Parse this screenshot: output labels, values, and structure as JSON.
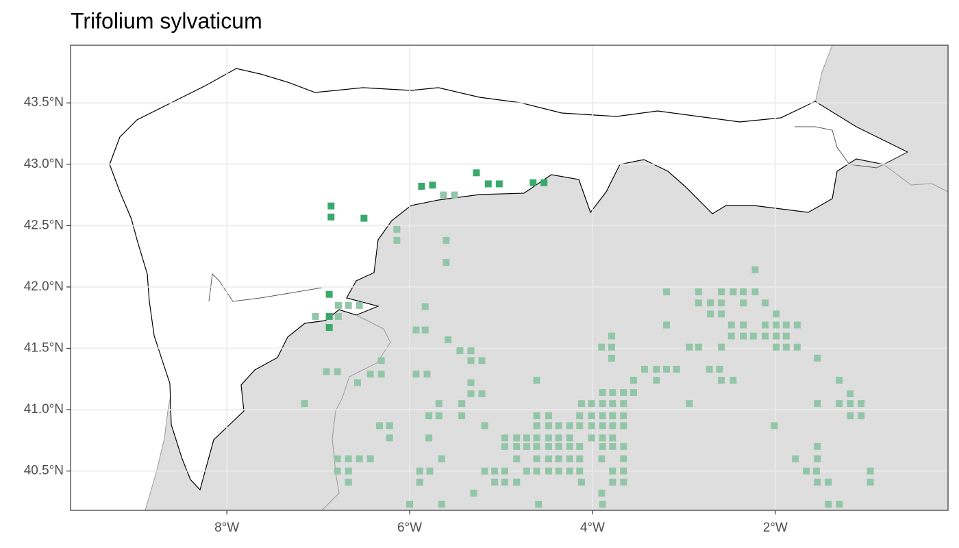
{
  "chart_data": {
    "type": "scatter",
    "title": "Trifolium sylvaticum",
    "xlim": [
      -9.71,
      -0.11
    ],
    "ylim": [
      40.18,
      43.97
    ],
    "xticks": [
      {
        "value": -8,
        "label": "8°W"
      },
      {
        "value": -6,
        "label": "6°W"
      },
      {
        "value": -4,
        "label": "4°W"
      },
      {
        "value": -2,
        "label": "2°W"
      }
    ],
    "yticks": [
      {
        "value": 40.5,
        "label": "40.5°N"
      },
      {
        "value": 41,
        "label": "41.0°N"
      },
      {
        "value": 41.5,
        "label": "41.5°N"
      },
      {
        "value": 42,
        "label": "42.0°N"
      },
      {
        "value": 42.5,
        "label": "42.5°N"
      },
      {
        "value": 43,
        "label": "43.0°N"
      },
      {
        "value": 43.5,
        "label": "43.5°N"
      }
    ],
    "grid": true,
    "series": [
      {
        "color": "#93c6a8",
        "x": [
          -5.63,
          -5.51,
          -6.14,
          -6.14,
          -5.6,
          -5.6,
          -2.22,
          -3.19,
          -2.84,
          -2.59,
          -2.46,
          -2.35,
          -2.22,
          -2.84,
          -2.71,
          -2.59,
          -2.35,
          -2.11,
          -5.83,
          -6.78,
          -6.67,
          -6.55,
          -7.03,
          -6.78,
          -2.71,
          -2.59,
          -1.99,
          -3.19,
          -2.48,
          -2.35,
          -2.11,
          -1.99,
          -1.88,
          -1.76,
          -5.93,
          -5.83,
          -2.48,
          -2.35,
          -2.24,
          -2.11,
          -1.99,
          -1.88,
          -3.79,
          -5.58,
          -3.9,
          -3.79,
          -2.94,
          -2.84,
          -2.59,
          -1.99,
          -1.88,
          -1.76,
          -5.45,
          -5.33,
          -3.79,
          -1.54,
          -5.33,
          -5.21,
          -6.31,
          -6.91,
          -6.79,
          -6.43,
          -6.31,
          -5.93,
          -5.81,
          -3.43,
          -3.3,
          -3.19,
          -3.08,
          -2.72,
          -2.61,
          -3.55,
          -3.3,
          -2.59,
          -2.46,
          -4.61,
          -1.3,
          -6.57,
          -5.33,
          -5.33,
          -5.21,
          -1.18,
          -3.89,
          -3.78,
          -3.66,
          -3.55,
          -7.15,
          -5.68,
          -5.43,
          -4.12,
          -4.01,
          -3.89,
          -3.78,
          -3.66,
          -2.94,
          -1.54,
          -1.3,
          -1.18,
          -1.06,
          -5.79,
          -5.68,
          -5.43,
          -4.61,
          -4.48,
          -4.14,
          -4.01,
          -3.89,
          -3.78,
          -3.66,
          -1.18,
          -1.06,
          -6.33,
          -6.22,
          -5.18,
          -4.61,
          -4.48,
          -4.37,
          -4.25,
          -4.14,
          -4.01,
          -3.89,
          -3.78,
          -3.66,
          -2.01,
          -6.22,
          -5.79,
          -4.96,
          -4.83,
          -4.72,
          -4.61,
          -4.48,
          -4.37,
          -4.25,
          -4.01,
          -3.89,
          -3.78,
          -4.96,
          -4.83,
          -4.72,
          -4.61,
          -4.48,
          -4.37,
          -4.25,
          -4.14,
          -3.89,
          -3.78,
          -3.66,
          -1.54,
          -6.79,
          -6.67,
          -6.55,
          -6.43,
          -5.65,
          -4.83,
          -4.61,
          -4.48,
          -4.37,
          -4.25,
          -4.14,
          -3.9,
          -3.66,
          -1.78,
          -1.54,
          -6.79,
          -6.67,
          -5.89,
          -5.78,
          -5.18,
          -5.07,
          -4.96,
          -4.72,
          -4.61,
          -4.48,
          -4.37,
          -4.25,
          -4.14,
          -3.78,
          -3.66,
          -1.66,
          -1.55,
          -0.96,
          -6.67,
          -5.89,
          -5.07,
          -4.96,
          -4.83,
          -4.12,
          -3.78,
          -3.66,
          -1.54,
          -1.42,
          -0.96,
          -5.3,
          -3.9,
          -6.0,
          -5.65,
          -4.59,
          -3.89,
          -1.42,
          -1.3
        ],
        "values": [
          42.75,
          42.75,
          42.47,
          42.38,
          42.38,
          42.2,
          42.14,
          41.96,
          41.96,
          41.96,
          41.96,
          41.96,
          41.96,
          41.87,
          41.87,
          41.87,
          41.87,
          41.87,
          41.84,
          41.85,
          41.85,
          41.85,
          41.76,
          41.76,
          41.78,
          41.78,
          41.78,
          41.69,
          41.69,
          41.69,
          41.69,
          41.69,
          41.69,
          41.69,
          41.65,
          41.65,
          41.6,
          41.6,
          41.6,
          41.6,
          41.6,
          41.6,
          41.6,
          41.57,
          41.51,
          41.51,
          41.51,
          41.51,
          41.51,
          41.51,
          41.51,
          41.51,
          41.48,
          41.48,
          41.42,
          41.42,
          41.4,
          41.4,
          41.4,
          41.31,
          41.31,
          41.29,
          41.29,
          41.29,
          41.29,
          41.33,
          41.33,
          41.33,
          41.33,
          41.33,
          41.33,
          41.24,
          41.24,
          41.24,
          41.24,
          41.24,
          41.24,
          41.22,
          41.22,
          41.13,
          41.13,
          41.13,
          41.14,
          41.14,
          41.14,
          41.14,
          41.05,
          41.05,
          41.05,
          41.05,
          41.05,
          41.05,
          41.05,
          41.05,
          41.05,
          41.05,
          41.05,
          41.05,
          41.05,
          40.95,
          40.95,
          40.95,
          40.95,
          40.95,
          40.95,
          40.95,
          40.95,
          40.95,
          40.95,
          40.95,
          40.95,
          40.87,
          40.87,
          40.87,
          40.87,
          40.87,
          40.87,
          40.87,
          40.87,
          40.87,
          40.87,
          40.87,
          40.87,
          40.87,
          40.77,
          40.77,
          40.77,
          40.77,
          40.77,
          40.77,
          40.77,
          40.77,
          40.77,
          40.77,
          40.77,
          40.77,
          40.7,
          40.7,
          40.7,
          40.7,
          40.7,
          40.7,
          40.7,
          40.7,
          40.7,
          40.7,
          40.7,
          40.7,
          40.6,
          40.6,
          40.6,
          40.6,
          40.6,
          40.6,
          40.6,
          40.6,
          40.6,
          40.6,
          40.6,
          40.6,
          40.6,
          40.6,
          40.6,
          40.5,
          40.5,
          40.5,
          40.5,
          40.5,
          40.5,
          40.5,
          40.5,
          40.5,
          40.5,
          40.5,
          40.5,
          40.5,
          40.5,
          40.5,
          40.5,
          40.5,
          40.5,
          40.41,
          40.41,
          40.41,
          40.41,
          40.41,
          40.41,
          40.41,
          40.41,
          40.41,
          40.41,
          40.41,
          40.32,
          40.32,
          40.23,
          40.23,
          40.23,
          40.23,
          40.23,
          40.23
        ]
      },
      {
        "color": "#3aaa6c",
        "x": [
          -6.86,
          -6.86,
          -6.5,
          -5.87,
          -5.75,
          -5.27,
          -5.14,
          -5.02,
          -4.65,
          -4.53,
          -6.88,
          -6.88,
          -6.88
        ],
        "values": [
          42.66,
          42.57,
          42.56,
          42.82,
          42.83,
          42.93,
          42.84,
          42.84,
          42.85,
          42.85,
          41.94,
          41.76,
          41.67
        ]
      }
    ]
  }
}
